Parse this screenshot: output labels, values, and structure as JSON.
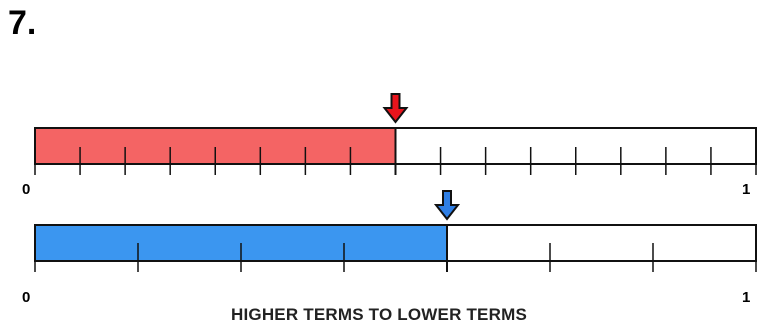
{
  "problem": {
    "number": "7."
  },
  "caption": "HIGHER TERMS TO LOWER TERMS",
  "bars": [
    {
      "parts": 16,
      "shaded": 8,
      "fill_color": "#f46464",
      "arrow_color": "#e8141c",
      "label_start": "0",
      "label_end": "1"
    },
    {
      "parts": 7,
      "shaded": 4,
      "fill_color": "#3b96f0",
      "arrow_color": "#2f7fe6",
      "label_start": "0",
      "label_end": "1"
    }
  ],
  "colors": {
    "outline": "#111111",
    "empty_fill": "#ffffff"
  }
}
